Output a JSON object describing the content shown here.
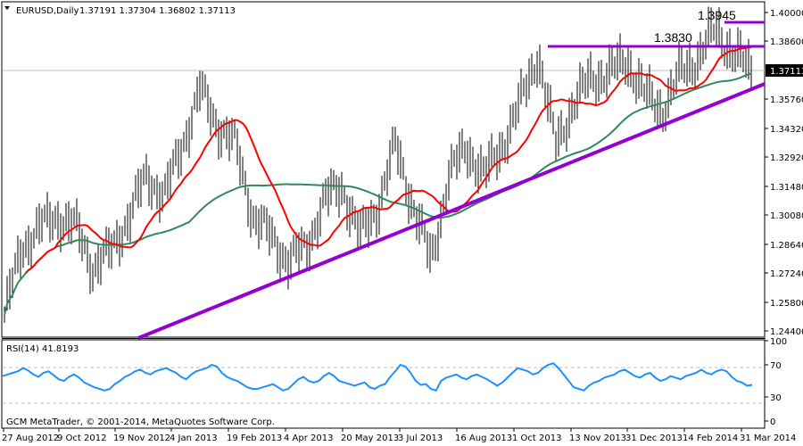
{
  "header": {
    "symbol_label": "EURUSD,Daily",
    "ohlc": "1.37191 1.37304 1.36802 1.37113",
    "collapse_icon": "triangle-down-icon"
  },
  "footer": {
    "copyright": "GCM MetaTrader, © 2001-2014, MetaQuotes Software Corp."
  },
  "colors": {
    "bars": "#000000",
    "ma_fast": "#ff0000",
    "ma_slow": "#2e8b57",
    "trendlines": "#9400d3",
    "rsi": "#1e90ff",
    "current_price_bg": "#000000",
    "grid_level": "#c0c0c0"
  },
  "chart_data": [
    {
      "type": "ohlc",
      "title": "EURUSD, Daily",
      "last_ohlc": {
        "open": 1.37191,
        "high": 1.37304,
        "low": 1.36802,
        "close": 1.37113
      },
      "current_price": "1.37113",
      "y_ticks": [
        "1.40000",
        "1.38600",
        "1.35760",
        "1.34320",
        "1.32920",
        "1.31480",
        "1.30080",
        "1.28640",
        "1.27240",
        "1.25800",
        "1.24400"
      ],
      "x_ticks": [
        "27 Aug 2012",
        "9 Oct 2012",
        "19 Nov 2012",
        "4 Jan 2013",
        "19 Feb 2013",
        "4 Apr 2013",
        "20 May 2013",
        "3 Jul 2013",
        "16 Aug 2013",
        "1 Oct 2013",
        "13 Nov 2013",
        "31 Dec 2013",
        "14 Feb 2014",
        "31 Mar 2014"
      ],
      "ylim": [
        1.244,
        1.4
      ],
      "annotations": [
        {
          "text": "1.3945",
          "type": "resistance",
          "value": 1.3945
        },
        {
          "text": "1.3830",
          "type": "resistance",
          "value": 1.383
        }
      ],
      "trendline": {
        "from": {
          "date": "Jan 2013",
          "price": 1.244
        },
        "to": {
          "date": "Apr 2014",
          "price": 1.3645
        }
      },
      "close_path": [
        [
          "27 Aug 2012",
          1.252
        ],
        [
          "10 Sep 2012",
          1.285
        ],
        [
          "24 Sep 2012",
          1.295
        ],
        [
          "9 Oct 2012",
          1.3
        ],
        [
          "23 Oct 2012",
          1.295
        ],
        [
          "6 Nov 2012",
          1.275
        ],
        [
          "19 Nov 2012",
          1.283
        ],
        [
          "3 Dec 2012",
          1.3
        ],
        [
          "17 Dec 2012",
          1.32
        ],
        [
          "4 Jan 2013",
          1.31
        ],
        [
          "18 Jan 2013",
          1.335
        ],
        [
          "1 Feb 2013",
          1.362
        ],
        [
          "8 Feb 2013",
          1.345
        ],
        [
          "19 Feb 2013",
          1.335
        ],
        [
          "4 Mar 2013",
          1.3
        ],
        [
          "18 Mar 2013",
          1.29
        ],
        [
          "25 Mar 2013",
          1.278
        ],
        [
          "4 Apr 2013",
          1.285
        ],
        [
          "18 Apr 2013",
          1.308
        ],
        [
          "2 May 2013",
          1.315
        ],
        [
          "20 May 2013",
          1.29
        ],
        [
          "3 Jun 2013",
          1.305
        ],
        [
          "17 Jun 2013",
          1.335
        ],
        [
          "1 Jul 2013",
          1.305
        ],
        [
          "10 Jul 2013",
          1.278
        ],
        [
          "24 Jul 2013",
          1.32
        ],
        [
          "16 Aug 2013",
          1.334
        ],
        [
          "30 Aug 2013",
          1.32
        ],
        [
          "13 Sep 2013",
          1.335
        ],
        [
          "1 Oct 2013",
          1.355
        ],
        [
          "25 Oct 2013",
          1.38
        ],
        [
          "7 Nov 2013",
          1.335
        ],
        [
          "21 Nov 2013",
          1.355
        ],
        [
          "5 Dec 2013",
          1.368
        ],
        [
          "19 Dec 2013",
          1.37
        ],
        [
          "31 Dec 2013",
          1.377
        ],
        [
          "14 Jan 2014",
          1.36
        ],
        [
          "3 Feb 2014",
          1.352
        ],
        [
          "14 Feb 2014",
          1.37
        ],
        [
          "3 Mar 2014",
          1.378
        ],
        [
          "13 Mar 2014",
          1.392
        ],
        [
          "25 Mar 2014",
          1.38
        ],
        [
          "31 Mar 2014",
          1.3711
        ]
      ],
      "series": [
        {
          "name": "MA fast (red)",
          "color": "#ff0000"
        },
        {
          "name": "MA slow (green)",
          "color": "#2e8b57"
        }
      ]
    },
    {
      "type": "line",
      "title": "RSI(14) 41.8193",
      "label": "RSI(14)",
      "value": "41.8193",
      "y_ticks": [
        "100",
        "70",
        "30",
        "0"
      ],
      "levels": [
        70,
        30
      ],
      "ylim": [
        0,
        100
      ],
      "values": [
        56,
        58,
        60,
        62,
        66,
        63,
        58,
        55,
        60,
        62,
        57,
        52,
        50,
        55,
        58,
        54,
        48,
        45,
        42,
        40,
        38,
        40,
        46,
        50,
        55,
        58,
        62,
        64,
        60,
        58,
        62,
        64,
        66,
        63,
        60,
        55,
        52,
        58,
        62,
        64,
        66,
        70,
        68,
        60,
        55,
        52,
        50,
        46,
        42,
        40,
        40,
        42,
        44,
        46,
        42,
        38,
        40,
        46,
        52,
        55,
        50,
        48,
        50,
        56,
        60,
        56,
        50,
        48,
        46,
        44,
        46,
        48,
        42,
        40,
        44,
        46,
        55,
        62,
        70,
        68,
        60,
        50,
        45,
        46,
        40,
        38,
        50,
        54,
        56,
        58,
        54,
        52,
        56,
        58,
        55,
        52,
        48,
        44,
        48,
        54,
        60,
        66,
        64,
        62,
        58,
        60,
        66,
        70,
        72,
        66,
        58,
        50,
        42,
        40,
        38,
        44,
        48,
        50,
        54,
        56,
        58,
        62,
        64,
        60,
        56,
        54,
        58,
        60,
        54,
        50,
        52,
        56,
        54,
        52,
        56,
        58,
        60,
        64,
        60,
        58,
        62,
        64,
        62,
        55,
        50,
        48,
        44,
        45
      ]
    }
  ]
}
